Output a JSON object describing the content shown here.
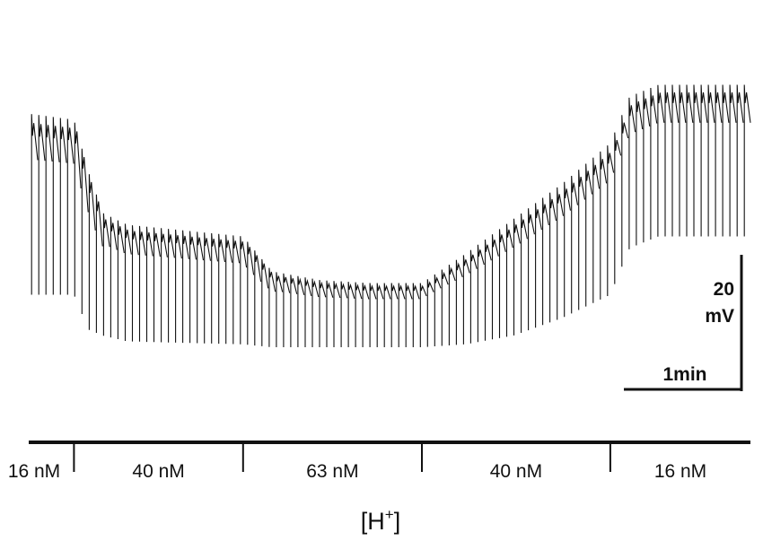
{
  "chart_data": {
    "type": "line",
    "description_free": true,
    "x_unit": "min",
    "y_unit": "mV",
    "scale_bar": {
      "voltage_value": "20",
      "voltage_unit": "mV",
      "time_label": "1min"
    },
    "segments": [
      {
        "label": "16 nM",
        "h_nM": 16,
        "start_min": 0.0,
        "end_min": 0.9
      },
      {
        "label": "40 nM",
        "h_nM": 40,
        "start_min": 0.9,
        "end_min": 4.4
      },
      {
        "label": "63 nM",
        "h_nM": 63,
        "start_min": 4.4,
        "end_min": 8.1
      },
      {
        "label": "40 nM",
        "h_nM": 40,
        "start_min": 8.1,
        "end_min": 12.0
      },
      {
        "label": "16 nM",
        "h_nM": 16,
        "start_min": 12.0,
        "end_min": 14.9
      }
    ],
    "envelope": {
      "t_min": [
        0.0,
        0.9,
        1.2,
        1.5,
        2.0,
        4.4,
        5.0,
        6.0,
        7.0,
        8.1,
        9.0,
        10.0,
        11.0,
        12.0,
        12.4,
        13.0,
        14.9
      ],
      "peak_mV": [
        50,
        49,
        40,
        33,
        31,
        29,
        23,
        21.5,
        21,
        21,
        26,
        32,
        38,
        45,
        53,
        55,
        55
      ],
      "base_mV": [
        19,
        19,
        13,
        12,
        11,
        10.5,
        10,
        10,
        10,
        10,
        10.5,
        12,
        15,
        19,
        27,
        29,
        29
      ]
    },
    "pulse_count": 100,
    "xlim": [
      0,
      14.9
    ],
    "ylim": [
      0,
      60
    ],
    "axis_title": "[H+]",
    "axis_title_main": "[H",
    "axis_title_sup": "+",
    "axis_title_close": "]",
    "grid": false,
    "color": "#111111"
  }
}
